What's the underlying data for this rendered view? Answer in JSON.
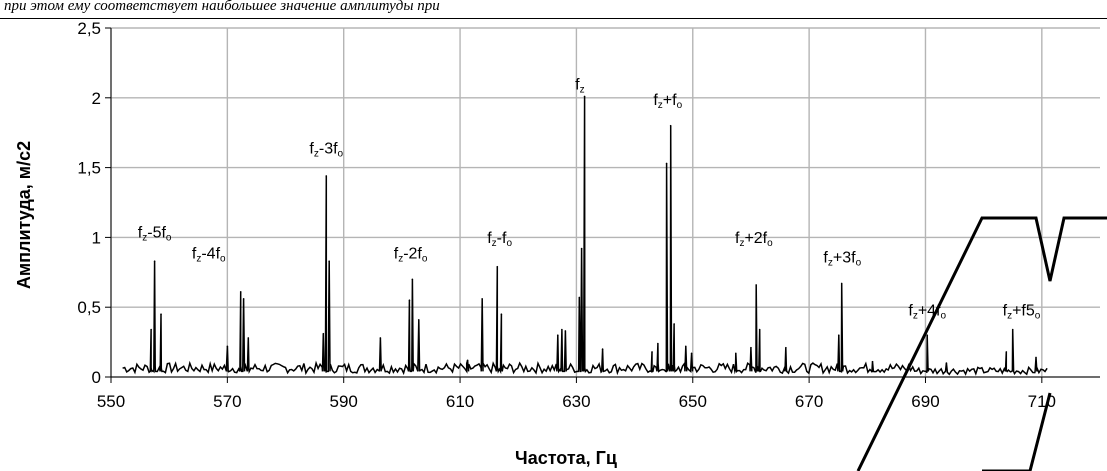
{
  "header_caption": "при этом ему соответствует наибольшее значение амплитуды при",
  "chart_data": {
    "type": "line",
    "xlabel": "Частота, Гц",
    "ylabel": "Амплитуда, м/с2",
    "xlim": [
      550,
      720
    ],
    "ylim": [
      0,
      2.5
    ],
    "grid": true,
    "x_ticks": [
      "550",
      "570",
      "590",
      "610",
      "630",
      "650",
      "670",
      "690",
      "710"
    ],
    "y_ticks": [
      "0",
      "0,5",
      "1",
      "1,5",
      "2",
      "2,5"
    ],
    "series": [
      {
        "color": "#000000",
        "baseline": 0.08,
        "peaks": [
          {
            "x": 556.9,
            "y": 0.34
          },
          {
            "x": 557.5,
            "y": 0.83
          },
          {
            "x": 558.6,
            "y": 0.45
          },
          {
            "x": 570.0,
            "y": 0.22
          },
          {
            "x": 572.3,
            "y": 0.61
          },
          {
            "x": 572.8,
            "y": 0.56
          },
          {
            "x": 573.6,
            "y": 0.28
          },
          {
            "x": 586.5,
            "y": 0.31
          },
          {
            "x": 587.0,
            "y": 1.44
          },
          {
            "x": 587.5,
            "y": 0.83
          },
          {
            "x": 596.3,
            "y": 0.28
          },
          {
            "x": 601.3,
            "y": 0.55
          },
          {
            "x": 601.8,
            "y": 0.7
          },
          {
            "x": 602.9,
            "y": 0.41
          },
          {
            "x": 611.3,
            "y": 0.12
          },
          {
            "x": 613.8,
            "y": 0.56
          },
          {
            "x": 616.4,
            "y": 0.79
          },
          {
            "x": 617.1,
            "y": 0.45
          },
          {
            "x": 626.8,
            "y": 0.3
          },
          {
            "x": 627.5,
            "y": 0.34
          },
          {
            "x": 628.1,
            "y": 0.33
          },
          {
            "x": 630.5,
            "y": 0.57
          },
          {
            "x": 630.9,
            "y": 0.92
          },
          {
            "x": 631.4,
            "y": 2.01
          },
          {
            "x": 634.5,
            "y": 0.2
          },
          {
            "x": 643.0,
            "y": 0.18
          },
          {
            "x": 644.0,
            "y": 0.24
          },
          {
            "x": 645.5,
            "y": 1.53
          },
          {
            "x": 646.2,
            "y": 1.8
          },
          {
            "x": 646.8,
            "y": 0.38
          },
          {
            "x": 648.8,
            "y": 0.22
          },
          {
            "x": 649.8,
            "y": 0.17
          },
          {
            "x": 657.4,
            "y": 0.17
          },
          {
            "x": 660.0,
            "y": 0.21
          },
          {
            "x": 660.9,
            "y": 0.66
          },
          {
            "x": 661.5,
            "y": 0.34
          },
          {
            "x": 666.0,
            "y": 0.21
          },
          {
            "x": 675.6,
            "y": 0.67
          },
          {
            "x": 675.1,
            "y": 0.3
          },
          {
            "x": 680.9,
            "y": 0.11
          },
          {
            "x": 690.3,
            "y": 0.3
          },
          {
            "x": 693.6,
            "y": 0.1
          },
          {
            "x": 703.9,
            "y": 0.18
          },
          {
            "x": 705.0,
            "y": 0.34
          },
          {
            "x": 709.0,
            "y": 0.14
          }
        ]
      }
    ],
    "annotations": [
      {
        "x": 557.5,
        "y": 1.0,
        "main": "f",
        "parts": [
          [
            "z",
            "sub"
          ],
          [
            "-5f",
            ""
          ],
          [
            "o",
            "sub"
          ]
        ]
      },
      {
        "x": 566.8,
        "y": 0.85,
        "main": "f",
        "parts": [
          [
            "z",
            "sub"
          ],
          [
            "-4f",
            ""
          ],
          [
            "o",
            "sub"
          ]
        ]
      },
      {
        "x": 587.0,
        "y": 1.6,
        "main": "f",
        "parts": [
          [
            "z",
            "sub"
          ],
          [
            "-3f",
            ""
          ],
          [
            "o",
            "sub"
          ]
        ]
      },
      {
        "x": 601.5,
        "y": 0.85,
        "main": "f",
        "parts": [
          [
            "z",
            "sub"
          ],
          [
            "-2f",
            ""
          ],
          [
            "o",
            "sub"
          ]
        ]
      },
      {
        "x": 616.8,
        "y": 0.96,
        "main": "f",
        "parts": [
          [
            "z",
            "sub"
          ],
          [
            "-f",
            ""
          ],
          [
            "o",
            "sub"
          ]
        ]
      },
      {
        "x": 630.6,
        "y": 2.06,
        "main": "f",
        "parts": [
          [
            "z",
            "sub"
          ]
        ]
      },
      {
        "x": 645.7,
        "y": 1.95,
        "main": "f",
        "parts": [
          [
            "z",
            "sub"
          ],
          [
            "+f",
            ""
          ],
          [
            "o",
            "sub"
          ]
        ]
      },
      {
        "x": 660.5,
        "y": 0.96,
        "main": "f",
        "parts": [
          [
            "z",
            "sub"
          ],
          [
            "+2f",
            ""
          ],
          [
            "o",
            "sub"
          ]
        ]
      },
      {
        "x": 675.7,
        "y": 0.82,
        "main": "f",
        "parts": [
          [
            "z",
            "sub"
          ],
          [
            "+3f",
            ""
          ],
          [
            "o",
            "sub"
          ]
        ]
      },
      {
        "x": 690.3,
        "y": 0.44,
        "main": "f",
        "parts": [
          [
            "z",
            "sub"
          ],
          [
            "+4f",
            ""
          ],
          [
            "o",
            "sub"
          ]
        ]
      },
      {
        "x": 706.5,
        "y": 0.44,
        "main": "f",
        "parts": [
          [
            "z",
            "sub"
          ],
          [
            "+f5",
            ""
          ],
          [
            "o",
            "sub"
          ]
        ]
      }
    ]
  }
}
